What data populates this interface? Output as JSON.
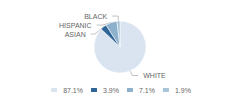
{
  "chart_data": {
    "type": "pie",
    "categories": [
      "WHITE",
      "ASIAN",
      "HISPANIC",
      "BLACK"
    ],
    "values": [
      87.1,
      3.9,
      7.1,
      1.9
    ],
    "value_labels": [
      "87.1%",
      "3.9%",
      "7.1%",
      "1.9%"
    ],
    "colors": [
      "#d9e4f0",
      "#2f6496",
      "#8db0cc",
      "#a8c4d8"
    ],
    "legend": "bottom"
  }
}
